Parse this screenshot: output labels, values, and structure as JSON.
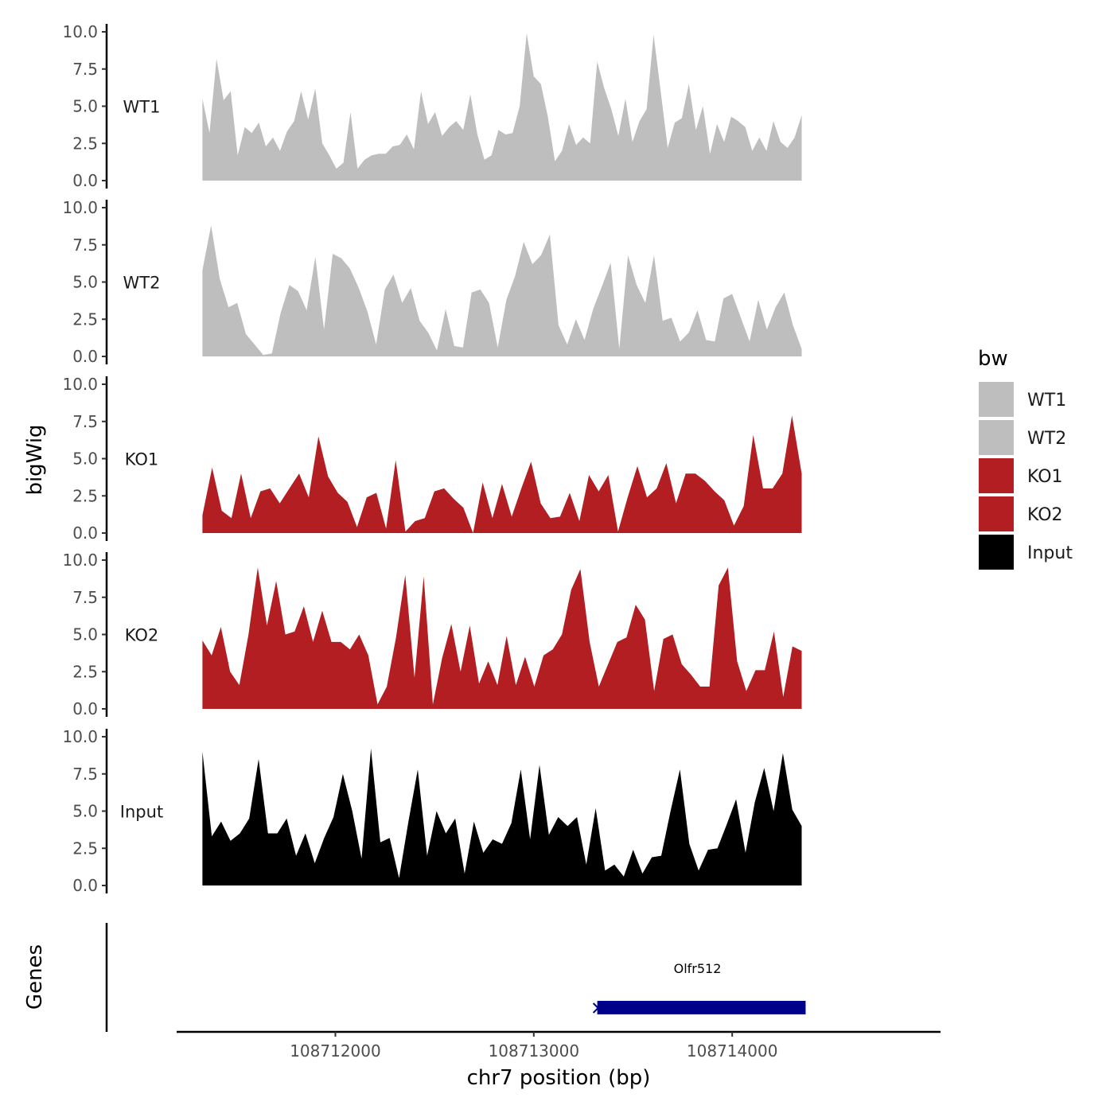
{
  "chart_data": {
    "type": "area",
    "xlabel": "chr7 position (bp)",
    "ylabel": "bigWig",
    "gene_panel_label": "Genes",
    "xlim": [
      108711200,
      108715050
    ],
    "data_range": [
      108711330,
      108714350
    ],
    "x_ticks": [
      108712000,
      108713000,
      108714000
    ],
    "x_tick_labels": [
      "108712000",
      "108713000",
      "108714000"
    ],
    "ylim": [
      0,
      10
    ],
    "y_ticks": [
      0,
      2.5,
      5,
      7.5,
      10
    ],
    "y_tick_labels": [
      "0.0",
      "2.5",
      "5.0",
      "7.5",
      "10.0"
    ],
    "legend": {
      "title": "bw",
      "items": [
        {
          "label": "WT1",
          "color": "#bebebe"
        },
        {
          "label": "WT2",
          "color": "#bebebe"
        },
        {
          "label": "KO1",
          "color": "#b21e22"
        },
        {
          "label": "KO2",
          "color": "#b21e22"
        },
        {
          "label": "Input",
          "color": "#000000"
        }
      ]
    },
    "series": [
      {
        "name": "WT1",
        "color": "#bebebe",
        "values": [
          5.5,
          3.2,
          8.2,
          5.4,
          6.0,
          1.7,
          3.6,
          3.2,
          3.9,
          2.3,
          2.9,
          2.0,
          3.3,
          4.0,
          6.0,
          4.1,
          6.2,
          2.5,
          1.7,
          0.8,
          1.2,
          4.6,
          0.8,
          1.4,
          1.7,
          1.8,
          1.8,
          2.3,
          2.4,
          3.1,
          2.1,
          6.0,
          3.8,
          4.6,
          3.0,
          3.6,
          4.0,
          3.4,
          5.8,
          3.1,
          1.4,
          1.7,
          3.4,
          3.1,
          3.2,
          5.0,
          9.9,
          7.0,
          6.5,
          4.3,
          1.3,
          2.0,
          3.8,
          2.4,
          2.9,
          2.5,
          8.0,
          6.2,
          4.8,
          3.0,
          5.5,
          2.6,
          4.0,
          4.8,
          9.8,
          6.0,
          2.2,
          3.9,
          4.2,
          6.5,
          3.4,
          5.0,
          1.8,
          3.8,
          2.6,
          4.3,
          4.0,
          3.6,
          2.0,
          2.9,
          2.0,
          4.0,
          2.6,
          2.2,
          2.9,
          4.4
        ]
      },
      {
        "name": "WT2",
        "color": "#bebebe",
        "values": [
          5.8,
          8.8,
          5.2,
          3.3,
          3.6,
          1.5,
          0.8,
          0.1,
          0.2,
          2.9,
          4.8,
          4.4,
          3.1,
          6.7,
          1.8,
          6.9,
          6.6,
          5.9,
          4.6,
          3.0,
          0.8,
          4.5,
          5.5,
          3.6,
          4.6,
          2.4,
          1.6,
          0.4,
          3.2,
          0.7,
          0.6,
          4.3,
          4.5,
          3.6,
          0.6,
          3.8,
          5.4,
          7.7,
          6.2,
          6.8,
          8.2,
          2.1,
          0.8,
          2.5,
          1.1,
          3.2,
          4.7,
          6.3,
          0.5,
          6.8,
          4.8,
          3.6,
          6.8,
          2.4,
          2.6,
          1.0,
          1.6,
          3.1,
          1.1,
          1.0,
          3.9,
          4.2,
          2.6,
          1.0,
          3.8,
          1.8,
          3.3,
          4.3,
          2.1,
          0.5
        ]
      },
      {
        "name": "KO1",
        "color": "#b21e22",
        "values": [
          1.2,
          4.4,
          1.5,
          1.0,
          4.0,
          1.0,
          2.8,
          3.0,
          2.0,
          3.0,
          4.0,
          2.4,
          6.5,
          3.8,
          2.7,
          2.1,
          0.4,
          2.4,
          2.7,
          0.3,
          4.9,
          0.1,
          0.8,
          1.0,
          2.8,
          3.0,
          2.3,
          1.7,
          0.0,
          3.4,
          1.0,
          3.3,
          1.1,
          3.0,
          4.8,
          2.0,
          1.0,
          1.1,
          2.7,
          0.8,
          3.9,
          2.8,
          3.9,
          0.1,
          2.4,
          4.5,
          2.4,
          3.0,
          4.7,
          2.0,
          4.0,
          4.0,
          3.5,
          2.8,
          2.2,
          0.5,
          1.8,
          6.6,
          3.0,
          3.0,
          4.0,
          7.9,
          4.0
        ]
      },
      {
        "name": "KO2",
        "color": "#b21e22",
        "values": [
          4.6,
          3.6,
          5.5,
          2.5,
          1.6,
          5.0,
          9.5,
          5.6,
          8.6,
          5.0,
          5.2,
          6.9,
          4.5,
          6.6,
          4.5,
          4.5,
          4.0,
          5.0,
          3.6,
          0.3,
          1.5,
          4.8,
          9.0,
          2.1,
          8.9,
          0.3,
          3.4,
          5.7,
          2.5,
          5.6,
          1.7,
          3.2,
          1.6,
          4.9,
          1.6,
          3.5,
          1.5,
          3.6,
          4.0,
          5.0,
          8.0,
          9.4,
          4.5,
          1.5,
          3.0,
          4.5,
          4.8,
          7.0,
          6.0,
          1.2,
          4.7,
          5.0,
          3.0,
          2.3,
          1.5,
          1.5,
          8.3,
          9.5,
          3.2,
          1.2,
          2.6,
          2.6,
          5.2,
          0.8,
          4.2,
          3.9
        ]
      },
      {
        "name": "Input",
        "color": "#000000",
        "values": [
          9.0,
          3.3,
          4.3,
          3.0,
          3.5,
          4.5,
          8.5,
          3.5,
          3.5,
          4.5,
          2.0,
          3.5,
          1.5,
          3.2,
          4.6,
          7.5,
          5.0,
          1.8,
          9.2,
          2.9,
          3.2,
          0.5,
          4.3,
          7.8,
          2.0,
          5.0,
          3.5,
          4.5,
          0.8,
          4.3,
          2.2,
          3.1,
          2.8,
          4.2,
          7.8,
          3.1,
          8.1,
          3.4,
          4.6,
          4.0,
          4.6,
          1.4,
          5.2,
          1.0,
          1.4,
          0.6,
          2.4,
          0.8,
          1.9,
          2.0,
          5.0,
          7.8,
          2.8,
          1.0,
          2.4,
          2.5,
          4.1,
          5.8,
          2.2,
          5.6,
          7.9,
          5.0,
          8.9,
          5.1,
          4.0
        ]
      }
    ],
    "genes": [
      {
        "name": "Olfr512",
        "start": 108713320,
        "end": 108714370,
        "strand": "-",
        "color": "#00008b"
      }
    ]
  }
}
